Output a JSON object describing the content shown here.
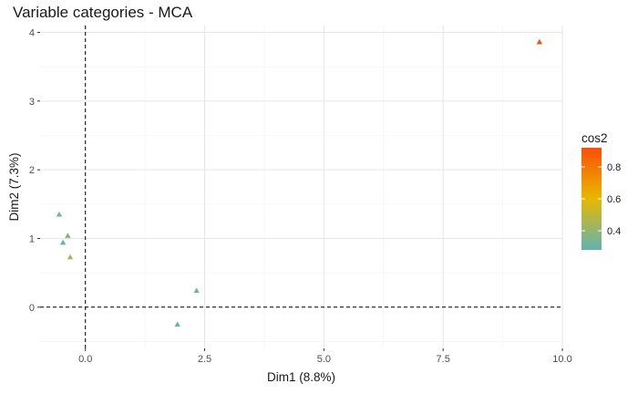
{
  "chart_data": {
    "type": "scatter",
    "title": "Variable categories - MCA",
    "xlabel": "Dim1 (8.8%)",
    "ylabel": "Dim2 (7.3%)",
    "xlim": [
      -0.95,
      10.0
    ],
    "ylim": [
      -0.6,
      4.1
    ],
    "x_ticks": [
      0.0,
      2.5,
      5.0,
      7.5,
      10.0
    ],
    "x_tick_labels": [
      "0.0",
      "2.5",
      "5.0",
      "7.5",
      "10.0"
    ],
    "y_ticks": [
      0,
      1,
      2,
      3,
      4
    ],
    "y_tick_labels": [
      "0",
      "1",
      "2",
      "3",
      "4"
    ],
    "grid": true,
    "reference_lines": {
      "x": 0,
      "y": 0,
      "style": "dashed"
    },
    "marker": "triangle",
    "points": [
      {
        "x": 9.52,
        "y": 3.86,
        "cos2": 0.92
      },
      {
        "x": -0.55,
        "y": 1.35,
        "cos2": 0.33
      },
      {
        "x": -0.37,
        "y": 1.04,
        "cos2": 0.35
      },
      {
        "x": -0.47,
        "y": 0.94,
        "cos2": 0.28
      },
      {
        "x": -0.32,
        "y": 0.73,
        "cos2": 0.45
      },
      {
        "x": 2.33,
        "y": 0.24,
        "cos2": 0.32
      },
      {
        "x": 1.93,
        "y": -0.25,
        "cos2": 0.31
      }
    ],
    "legend": {
      "title": "cos2",
      "position": "right",
      "ticks": [
        0.4,
        0.6,
        0.8
      ],
      "tick_labels": [
        "0.4",
        "0.6",
        "0.8"
      ],
      "range": [
        0.28,
        0.92
      ],
      "colors": [
        "#5fb3b3",
        "#e7b800",
        "#fc4e07"
      ]
    }
  }
}
